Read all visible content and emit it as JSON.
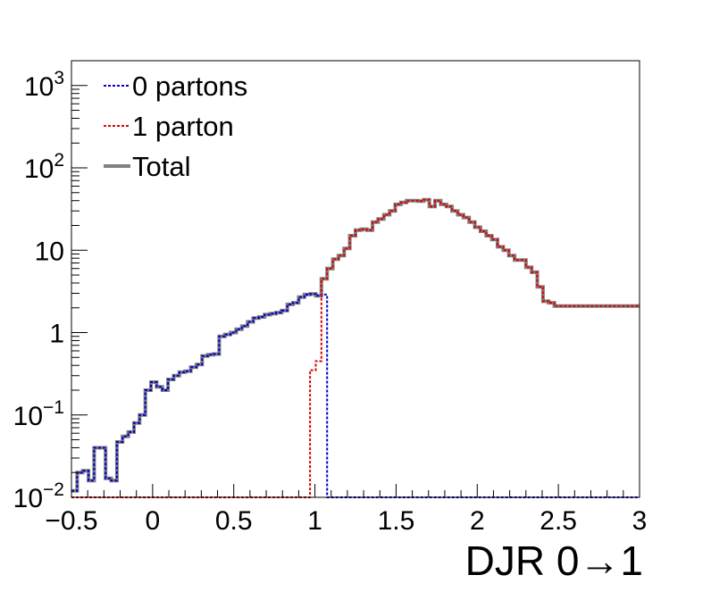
{
  "chart_data": {
    "type": "line",
    "step": true,
    "xlabel": "DJR 0→1",
    "ylabel": "",
    "xlim": [
      -0.5,
      3.0
    ],
    "ylim": [
      0.01,
      2000
    ],
    "y_scale": "log",
    "grid": false,
    "legend_position": "top-left",
    "x_ticks": [
      {
        "value": -0.5,
        "label": "−0.5"
      },
      {
        "value": 0,
        "label": "0"
      },
      {
        "value": 0.5,
        "label": "0.5"
      },
      {
        "value": 1,
        "label": "1"
      },
      {
        "value": 1.5,
        "label": "1.5"
      },
      {
        "value": 2,
        "label": "2"
      },
      {
        "value": 2.5,
        "label": "2.5"
      },
      {
        "value": 3,
        "label": "3"
      }
    ],
    "y_ticks": [
      {
        "value": 0.01,
        "base": "10",
        "exp": "−2"
      },
      {
        "value": 0.1,
        "base": "10",
        "exp": "−1"
      },
      {
        "value": 1,
        "base": "1",
        "exp": ""
      },
      {
        "value": 10,
        "base": "10",
        "exp": ""
      },
      {
        "value": 100,
        "base": "10",
        "exp": "2"
      },
      {
        "value": 1000,
        "base": "10",
        "exp": "3"
      }
    ],
    "bin_edges_range": [
      -0.5,
      3.0
    ],
    "bin_width": 0.035,
    "series": [
      {
        "name": "0 partons",
        "color": "#0000cc",
        "dash": true,
        "values": [
          0.012,
          0.02,
          0.021,
          0.016,
          0.04,
          0.04,
          0.017,
          0.016,
          0.047,
          0.055,
          0.062,
          0.08,
          0.1,
          0.2,
          0.25,
          0.22,
          0.2,
          0.27,
          0.3,
          0.33,
          0.34,
          0.38,
          0.41,
          0.52,
          0.54,
          0.55,
          0.9,
          0.95,
          1.0,
          1.1,
          1.2,
          1.35,
          1.5,
          1.55,
          1.65,
          1.7,
          1.75,
          1.85,
          2.2,
          2.3,
          2.7,
          2.9,
          2.95,
          2.8,
          2.9,
          0.01,
          0.01,
          0.01,
          0.01,
          0.01,
          0.01,
          0.01,
          0.01,
          0.01,
          0.01,
          0.01,
          0.01,
          0.01,
          0.01,
          0.01,
          0.01,
          0.01,
          0.01,
          0.01,
          0.01,
          0.01,
          0.01,
          0.01,
          0.01,
          0.01,
          0.01,
          0.01,
          0.01,
          0.01,
          0.01,
          0.01,
          0.01,
          0.01,
          0.01,
          0.01,
          0.01,
          0.01,
          0.01,
          0.01,
          0.01,
          0.01,
          0.01,
          0.01,
          0.01,
          0.01,
          0.01,
          0.01,
          0.01,
          0.01,
          0.01,
          0.01,
          0.01,
          0.01,
          0.01,
          0.01
        ]
      },
      {
        "name": "1 parton",
        "color": "#dd0000",
        "dash": true,
        "values": [
          0.01,
          0.01,
          0.01,
          0.01,
          0.01,
          0.01,
          0.01,
          0.01,
          0.01,
          0.01,
          0.01,
          0.01,
          0.01,
          0.01,
          0.01,
          0.01,
          0.01,
          0.01,
          0.01,
          0.01,
          0.01,
          0.01,
          0.01,
          0.01,
          0.01,
          0.01,
          0.01,
          0.01,
          0.01,
          0.01,
          0.01,
          0.01,
          0.01,
          0.01,
          0.01,
          0.01,
          0.01,
          0.01,
          0.01,
          0.01,
          0.01,
          0.01,
          0.35,
          0.45,
          4.5,
          6.0,
          7.8,
          8.6,
          10.5,
          15.0,
          17.5,
          18.0,
          17.5,
          22.0,
          24.0,
          27.0,
          30.0,
          36.0,
          38.0,
          40.0,
          40.0,
          39.5,
          41.0,
          34.0,
          40.0,
          36.0,
          34.0,
          30.0,
          27.0,
          25.0,
          22.0,
          19.0,
          17.0,
          15.0,
          13.5,
          11.0,
          10.0,
          8.6,
          7.6,
          7.6,
          6.2,
          5.4,
          3.6,
          2.4,
          2.3,
          2.1,
          2.1,
          2.1,
          2.1,
          2.1,
          2.1,
          2.1,
          2.1,
          2.1,
          2.1,
          2.1,
          2.1,
          2.1,
          2.1,
          2.1
        ]
      },
      {
        "name": "Total",
        "color": "#808080",
        "dash": false,
        "values": [
          0.012,
          0.02,
          0.021,
          0.016,
          0.04,
          0.04,
          0.017,
          0.016,
          0.047,
          0.055,
          0.062,
          0.08,
          0.1,
          0.2,
          0.25,
          0.22,
          0.2,
          0.27,
          0.3,
          0.33,
          0.34,
          0.38,
          0.41,
          0.52,
          0.54,
          0.55,
          0.9,
          0.95,
          1.0,
          1.1,
          1.2,
          1.35,
          1.5,
          1.55,
          1.65,
          1.7,
          1.75,
          1.85,
          2.2,
          2.3,
          2.7,
          2.9,
          2.95,
          2.8,
          4.5,
          6.0,
          7.8,
          8.6,
          10.5,
          15.0,
          17.5,
          18.0,
          17.5,
          22.0,
          24.0,
          27.0,
          30.0,
          36.0,
          38.0,
          40.0,
          40.0,
          39.5,
          41.0,
          34.0,
          40.0,
          36.0,
          34.0,
          30.0,
          27.0,
          25.0,
          22.0,
          19.0,
          17.0,
          15.0,
          13.5,
          11.0,
          10.0,
          8.6,
          7.6,
          7.6,
          6.2,
          5.4,
          3.6,
          2.4,
          2.3,
          2.1,
          2.1,
          2.1,
          2.1,
          2.1,
          2.1,
          2.1,
          2.1,
          2.1,
          2.1,
          2.1,
          2.1,
          2.1,
          2.1,
          2.1
        ]
      }
    ]
  }
}
